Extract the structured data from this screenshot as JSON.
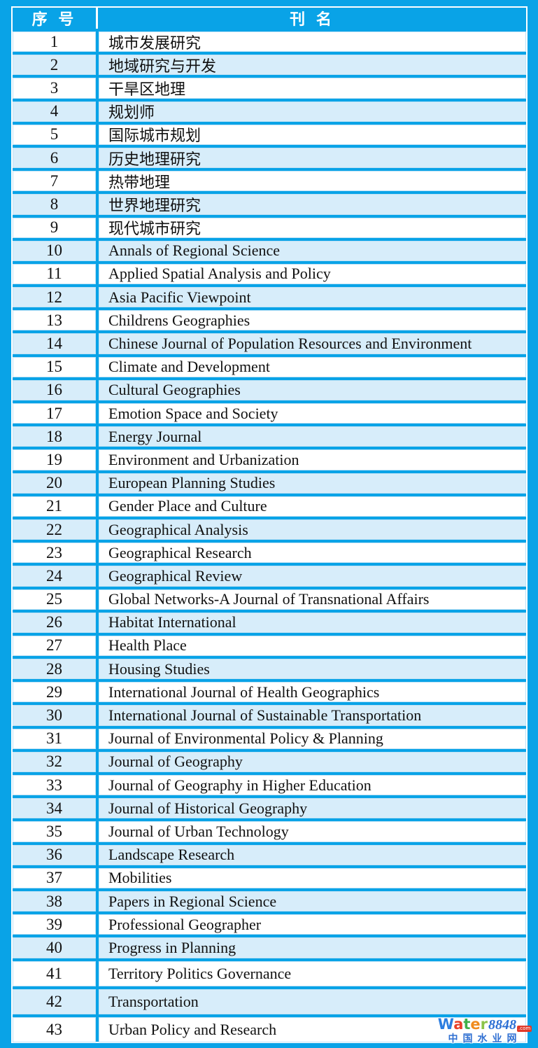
{
  "colors": {
    "background_blue": "#09a3e7",
    "row_white": "#ffffff",
    "row_light_blue": "#d7edfa",
    "header_text": "#ffffff",
    "body_text": "#111111",
    "watermark_blue": "#2f6fd2",
    "watermark_badge_red": "#e03a2a"
  },
  "header": {
    "col_number": "序 号",
    "col_name": "刊  名"
  },
  "table": {
    "rows": [
      {
        "num": "1",
        "name": "城市发展研究"
      },
      {
        "num": "2",
        "name": "地域研究与开发"
      },
      {
        "num": "3",
        "name": "干旱区地理"
      },
      {
        "num": "4",
        "name": "规划师"
      },
      {
        "num": "5",
        "name": "国际城市规划"
      },
      {
        "num": "6",
        "name": "历史地理研究"
      },
      {
        "num": "7",
        "name": "热带地理"
      },
      {
        "num": "8",
        "name": "世界地理研究"
      },
      {
        "num": "9",
        "name": "现代城市研究"
      },
      {
        "num": "10",
        "name": "Annals of Regional Science"
      },
      {
        "num": "11",
        "name": "Applied Spatial Analysis and Policy"
      },
      {
        "num": "12",
        "name": "Asia Pacific Viewpoint"
      },
      {
        "num": "13",
        "name": "Childrens Geographies"
      },
      {
        "num": "14",
        "name": "Chinese Journal of Population Resources and Environment"
      },
      {
        "num": "15",
        "name": "Climate and Development"
      },
      {
        "num": "16",
        "name": "Cultural Geographies"
      },
      {
        "num": "17",
        "name": "Emotion Space and Society"
      },
      {
        "num": "18",
        "name": "Energy Journal"
      },
      {
        "num": "19",
        "name": "Environment and Urbanization"
      },
      {
        "num": "20",
        "name": "European Planning Studies"
      },
      {
        "num": "21",
        "name": "Gender Place and Culture"
      },
      {
        "num": "22",
        "name": "Geographical Analysis"
      },
      {
        "num": "23",
        "name": "Geographical Research"
      },
      {
        "num": "24",
        "name": "Geographical Review"
      },
      {
        "num": "25",
        "name": "Global Networks-A Journal of Transnational Affairs"
      },
      {
        "num": "26",
        "name": "Habitat International"
      },
      {
        "num": "27",
        "name": "Health Place"
      },
      {
        "num": "28",
        "name": "Housing Studies"
      },
      {
        "num": "29",
        "name": "International Journal of Health Geographics"
      },
      {
        "num": "30",
        "name": "International Journal of Sustainable Transportation"
      },
      {
        "num": "31",
        "name": "Journal of Environmental Policy & Planning"
      },
      {
        "num": "32",
        "name": "Journal of Geography"
      },
      {
        "num": "33",
        "name": "Journal of Geography in Higher Education"
      },
      {
        "num": "34",
        "name": "Journal of Historical Geography"
      },
      {
        "num": "35",
        "name": "Journal of Urban Technology"
      },
      {
        "num": "36",
        "name": "Landscape Research"
      },
      {
        "num": "37",
        "name": "Mobilities"
      },
      {
        "num": "38",
        "name": "Papers in Regional Science"
      },
      {
        "num": "39",
        "name": "Professional Geographer"
      },
      {
        "num": "40",
        "name": "Progress in Planning"
      },
      {
        "num": "41",
        "name": "Territory Politics Governance"
      },
      {
        "num": "42",
        "name": "Transportation"
      },
      {
        "num": "43",
        "name": "Urban Policy and Research"
      }
    ]
  },
  "watermark": {
    "word_letters": [
      {
        "ch": "W",
        "color": "#2b7de0"
      },
      {
        "ch": "a",
        "color": "#e8402a"
      },
      {
        "ch": "t",
        "color": "#3faf49"
      },
      {
        "ch": "e",
        "color": "#f08c1e"
      },
      {
        "ch": "r",
        "color": "#8bc34a"
      }
    ],
    "number": "8848",
    "dotcom": ".com",
    "subtitle": "中国水业网"
  }
}
